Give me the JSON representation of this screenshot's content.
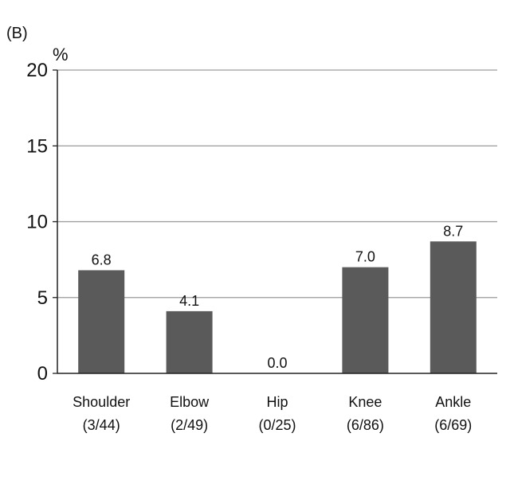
{
  "panel_label": "(B)",
  "chart_data": {
    "type": "bar",
    "title": "",
    "xlabel": "",
    "ylabel": "%",
    "ylim": [
      0,
      20
    ],
    "yticks": [
      "0",
      "5",
      "10",
      "15",
      "20"
    ],
    "grid": true,
    "categories": [
      "Shoulder",
      "Elbow",
      "Hip",
      "Knee",
      "Ankle"
    ],
    "category_counts": [
      "(3/44)",
      "(2/49)",
      "(0/25)",
      "(6/86)",
      "(6/69)"
    ],
    "values": [
      6.8,
      4.1,
      0.0,
      7.0,
      8.7
    ],
    "value_labels": [
      "6.8",
      "4.1",
      "0.0",
      "7.0",
      "8.7"
    ],
    "colors": {
      "bar": "#5a5a5a",
      "grid": "#9a9a9a",
      "axis": "#222222"
    }
  }
}
